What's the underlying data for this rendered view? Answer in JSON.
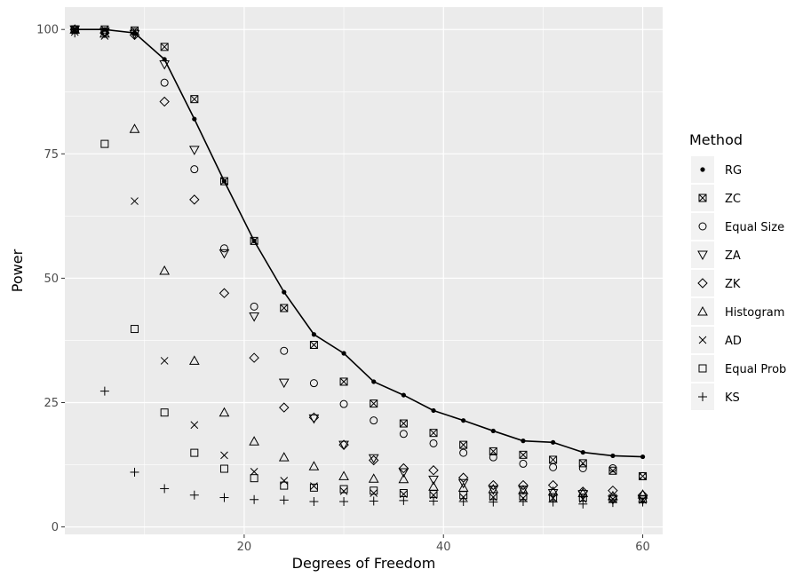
{
  "chart_data": {
    "type": "scatter",
    "xlabel": "Degrees of Freedom",
    "ylabel": "Power",
    "xlim": [
      2,
      62
    ],
    "ylim": [
      -1.5,
      104.5
    ],
    "x_ticks": [
      20,
      40,
      60
    ],
    "y_ticks": [
      0,
      25,
      50,
      75,
      100
    ],
    "grid": true,
    "legend": {
      "title": "Method",
      "position": "right"
    },
    "x": [
      3,
      6,
      9,
      12,
      15,
      18,
      21,
      24,
      27,
      30,
      33,
      36,
      39,
      42,
      45,
      48,
      51,
      54,
      57,
      60
    ],
    "series": [
      {
        "name": "RG",
        "marker": "dot",
        "line": true,
        "values": [
          100,
          100,
          99.3,
          94,
          82,
          69.5,
          57.5,
          47.2,
          38.7,
          34.9,
          29.2,
          26.5,
          23.4,
          21.4,
          19.3,
          17.3,
          17,
          15,
          14.3,
          14.1
        ]
      },
      {
        "name": "ZC",
        "marker": "square-x",
        "values": [
          100,
          100,
          99.8,
          96.5,
          86,
          69.5,
          57.5,
          44,
          36.6,
          29.2,
          24.8,
          20.8,
          18.9,
          16.5,
          15.2,
          14.5,
          13.5,
          12.8,
          11.3,
          10.2
        ]
      },
      {
        "name": "Equal Size",
        "marker": "circle",
        "values": [
          100,
          99.6,
          99.5,
          89.3,
          71.9,
          56,
          44.3,
          35.4,
          28.9,
          24.7,
          21.4,
          18.7,
          16.8,
          14.9,
          14,
          12.7,
          12,
          11.8,
          11.8,
          10.2
        ]
      },
      {
        "name": "ZA",
        "marker": "triangle-down",
        "values": [
          100,
          99.5,
          99.1,
          93,
          75.8,
          55,
          42.3,
          29,
          21.8,
          16.5,
          13.8,
          11,
          9.5,
          8.8,
          7.5,
          7.5,
          6.8,
          6.6,
          5.5,
          5.5
        ]
      },
      {
        "name": "ZK",
        "marker": "diamond",
        "values": [
          100,
          99.3,
          98.9,
          85.5,
          65.8,
          47,
          34,
          24,
          22,
          16.5,
          13.4,
          11.8,
          11.4,
          9.9,
          8.4,
          8.4,
          8.4,
          7.1,
          7.3,
          6.4
        ]
      },
      {
        "name": "Histogram",
        "marker": "triangle-up",
        "values": [
          100,
          99.2,
          80,
          51.5,
          33.4,
          23,
          17.2,
          14,
          12.2,
          10.2,
          9.7,
          9.6,
          8.1,
          7.9,
          7.6,
          7.4,
          7.1,
          6.8,
          6.2,
          6.5
        ]
      },
      {
        "name": "AD",
        "marker": "x",
        "values": [
          99.5,
          98.7,
          65.5,
          33.4,
          20.5,
          14.4,
          11.1,
          9.3,
          8.2,
          7.2,
          6.8,
          6.6,
          6.4,
          6,
          6,
          5.8,
          5.8,
          5.6,
          5.6,
          5.4
        ]
      },
      {
        "name": "Equal Prob",
        "marker": "square",
        "values": [
          100,
          77,
          39.8,
          23,
          14.9,
          11.7,
          9.8,
          8.3,
          7.9,
          7.6,
          7.3,
          6.8,
          6.6,
          6.4,
          6.2,
          6.2,
          6,
          5.9,
          5.8,
          5.6
        ]
      },
      {
        "name": "KS",
        "marker": "plus",
        "values": [
          99.3,
          27.3,
          11,
          7.7,
          6.4,
          5.9,
          5.5,
          5.4,
          5.1,
          5.1,
          5.2,
          5.3,
          5.2,
          5.1,
          5,
          5.1,
          5,
          4.6,
          4.9,
          5
        ]
      }
    ]
  }
}
